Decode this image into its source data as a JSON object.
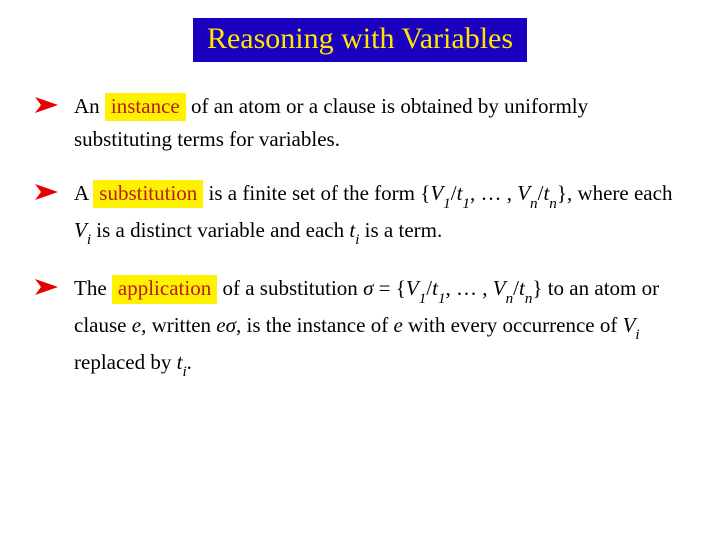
{
  "colors": {
    "title_bg": "#1a00bf",
    "title_fg": "#ffe600",
    "highlight_bg": "#fff200",
    "highlight_fg": "#c01818",
    "arrow_fill": "#e60000",
    "body_text": "#000000",
    "background": "#ffffff"
  },
  "title": "Reasoning with Variables",
  "bullets": [
    {
      "pre": "An ",
      "highlight": "instance",
      "post_html": " of an atom or a clause is obtained by uniformly substituting terms for variables."
    },
    {
      "pre": "A ",
      "highlight": "substitution",
      "post_html": " is a finite set of the form {<span class=\"math-i\">V</span><sub>1</sub>/<span class=\"math-i\">t</span><sub>1</sub>, … , <span class=\"math-i\">V</span><sub>n</sub>/<span class=\"math-i\">t</span><sub>n</sub>}, where each <span class=\"math-i\">V</span><sub>i</sub> is a distinct variable and each <span class=\"math-i\">t</span><sub>i</sub> is a term."
    },
    {
      "pre": "The ",
      "highlight": "application",
      "post_html": " of a substitution <span class=\"math-i\">σ</span> = {<span class=\"math-i\">V</span><sub>1</sub>/<span class=\"math-i\">t</span><sub>1</sub>, … , <span class=\"math-i\">V</span><sub>n</sub>/<span class=\"math-i\">t</span><sub>n</sub>} to an atom or clause <span class=\"math-i\">e</span>, written <span class=\"math-i\">eσ</span>, is the instance of <span class=\"math-i\">e</span> with every occurrence of <span class=\"math-i\">V</span><sub>i</sub> replaced by <span class=\"math-i\">t</span><sub>i</sub>."
    }
  ],
  "arrow_svg": {
    "width": 26,
    "height": 22
  }
}
